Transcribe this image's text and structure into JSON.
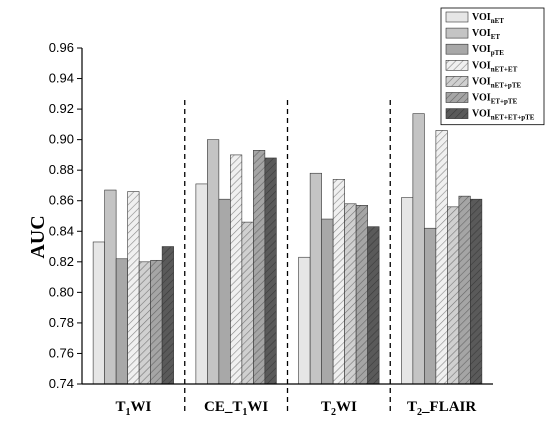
{
  "chart_data": {
    "type": "bar",
    "ylabel": "AUC",
    "xlabel": "",
    "ylim": [
      0.74,
      0.96
    ],
    "yticks": [
      "0.74",
      "0.76",
      "0.78",
      "0.80",
      "0.82",
      "0.84",
      "0.86",
      "0.88",
      "0.90",
      "0.92",
      "0.94",
      "0.96"
    ],
    "categories": [
      {
        "main": "T",
        "sub": "1",
        "rest": "WI"
      },
      {
        "main": "CE_T",
        "sub": "1",
        "rest": "WI"
      },
      {
        "main": "T",
        "sub": "2",
        "rest": "WI"
      },
      {
        "main": "T",
        "sub": "2",
        "rest": "_FLAIR"
      }
    ],
    "series": [
      {
        "name": "VOInET",
        "label_main": "VOI",
        "label_sub": "nET",
        "color": "#e6e6e6",
        "hatch": false,
        "values": [
          0.833,
          0.871,
          0.823,
          0.862
        ]
      },
      {
        "name": "VOIET",
        "label_main": "VOI",
        "label_sub": "ET",
        "color": "#c4c4c4",
        "hatch": false,
        "values": [
          0.867,
          0.9,
          0.878,
          0.917
        ]
      },
      {
        "name": "VOIpTE",
        "label_main": "VOI",
        "label_sub": "pTE",
        "color": "#a8a8a8",
        "hatch": false,
        "values": [
          0.822,
          0.861,
          0.848,
          0.842
        ]
      },
      {
        "name": "VOInET+ET",
        "label_main": "VOI",
        "label_sub": "nET+ET",
        "color": "#e6e6e6",
        "hatch": true,
        "values": [
          0.866,
          0.89,
          0.874,
          0.906
        ]
      },
      {
        "name": "VOInET+pTE",
        "label_main": "VOI",
        "label_sub": "nET+pTE",
        "color": "#c4c4c4",
        "hatch": true,
        "values": [
          0.82,
          0.846,
          0.858,
          0.856
        ]
      },
      {
        "name": "VOIET+pTE",
        "label_main": "VOI",
        "label_sub": "ET+pTE",
        "color": "#9c9c9c",
        "hatch": true,
        "values": [
          0.821,
          0.893,
          0.857,
          0.863
        ]
      },
      {
        "name": "VOInET+ET+pTE",
        "label_main": "VOI",
        "label_sub": "nET+ET+pTE",
        "color": "#555555",
        "hatch": true,
        "values": [
          0.83,
          0.888,
          0.843,
          0.861
        ]
      }
    ],
    "grid": false,
    "legend_position": "top-right",
    "group_separators": "dashed"
  }
}
